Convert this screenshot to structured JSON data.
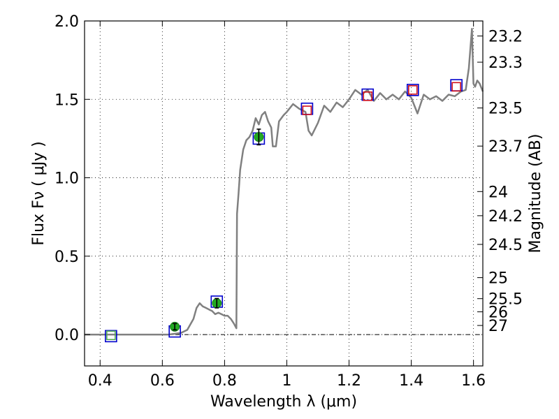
{
  "chart_data": {
    "type": "scatter",
    "xlabel": "Wavelength  λ (μm)",
    "ylabel": "Flux  Fν  ( μJy )",
    "ylabel_right": "Magnitude (AB)",
    "xlim": [
      0.35,
      1.63
    ],
    "ylim": [
      -0.2,
      2.0
    ],
    "grid": true,
    "zero_line": 0,
    "x_ticks": [
      {
        "value": 0.4,
        "label": "0.4"
      },
      {
        "value": 0.6,
        "label": "0.6"
      },
      {
        "value": 0.8,
        "label": "0.8"
      },
      {
        "value": 1.0,
        "label": "1"
      },
      {
        "value": 1.2,
        "label": "1.2"
      },
      {
        "value": 1.4,
        "label": "1.4"
      },
      {
        "value": 1.6,
        "label": "1.6"
      }
    ],
    "y_ticks": [
      {
        "value": 0.0,
        "label": "0.0"
      },
      {
        "value": 0.5,
        "label": "0.5"
      },
      {
        "value": 1.0,
        "label": "1.0"
      },
      {
        "value": 1.5,
        "label": "1.5"
      },
      {
        "value": 2.0,
        "label": "2.0"
      }
    ],
    "right_ticks": [
      {
        "label": "23.2",
        "flux": 1.904
      },
      {
        "label": "23.3",
        "flux": 1.737
      },
      {
        "label": "23.5",
        "flux": 1.445
      },
      {
        "label": "23.7",
        "flux": 1.202
      },
      {
        "label": "24",
        "flux": 0.912
      },
      {
        "label": "24.2",
        "flux": 0.758
      },
      {
        "label": "24.5",
        "flux": 0.575
      },
      {
        "label": "25",
        "flux": 0.363
      },
      {
        "label": "25.5",
        "flux": 0.229
      },
      {
        "label": "26",
        "flux": 0.145
      },
      {
        "label": "27",
        "flux": 0.058
      }
    ],
    "series": [
      {
        "kind": "line",
        "color": "#808080",
        "points": [
          [
            0.35,
            0.0
          ],
          [
            0.45,
            0.0
          ],
          [
            0.55,
            0.0
          ],
          [
            0.62,
            0.0
          ],
          [
            0.66,
            0.01
          ],
          [
            0.68,
            0.03
          ],
          [
            0.7,
            0.1
          ],
          [
            0.71,
            0.17
          ],
          [
            0.72,
            0.2
          ],
          [
            0.73,
            0.18
          ],
          [
            0.74,
            0.17
          ],
          [
            0.75,
            0.16
          ],
          [
            0.76,
            0.15
          ],
          [
            0.77,
            0.13
          ],
          [
            0.78,
            0.14
          ],
          [
            0.79,
            0.13
          ],
          [
            0.8,
            0.12
          ],
          [
            0.81,
            0.12
          ],
          [
            0.82,
            0.1
          ],
          [
            0.83,
            0.07
          ],
          [
            0.838,
            0.04
          ],
          [
            0.84,
            0.77
          ],
          [
            0.845,
            0.9
          ],
          [
            0.85,
            1.05
          ],
          [
            0.86,
            1.18
          ],
          [
            0.87,
            1.24
          ],
          [
            0.88,
            1.26
          ],
          [
            0.89,
            1.3
          ],
          [
            0.9,
            1.38
          ],
          [
            0.91,
            1.34
          ],
          [
            0.92,
            1.4
          ],
          [
            0.93,
            1.42
          ],
          [
            0.94,
            1.36
          ],
          [
            0.95,
            1.32
          ],
          [
            0.955,
            1.2
          ],
          [
            0.965,
            1.2
          ],
          [
            0.975,
            1.36
          ],
          [
            0.99,
            1.4
          ],
          [
            1.0,
            1.42
          ],
          [
            1.02,
            1.47
          ],
          [
            1.04,
            1.44
          ],
          [
            1.06,
            1.42
          ],
          [
            1.07,
            1.3
          ],
          [
            1.08,
            1.27
          ],
          [
            1.1,
            1.35
          ],
          [
            1.12,
            1.46
          ],
          [
            1.14,
            1.42
          ],
          [
            1.16,
            1.48
          ],
          [
            1.18,
            1.45
          ],
          [
            1.2,
            1.5
          ],
          [
            1.22,
            1.56
          ],
          [
            1.24,
            1.53
          ],
          [
            1.26,
            1.56
          ],
          [
            1.28,
            1.49
          ],
          [
            1.3,
            1.54
          ],
          [
            1.32,
            1.5
          ],
          [
            1.34,
            1.53
          ],
          [
            1.36,
            1.5
          ],
          [
            1.38,
            1.55
          ],
          [
            1.4,
            1.51
          ],
          [
            1.42,
            1.41
          ],
          [
            1.44,
            1.53
          ],
          [
            1.46,
            1.5
          ],
          [
            1.48,
            1.52
          ],
          [
            1.5,
            1.49
          ],
          [
            1.52,
            1.53
          ],
          [
            1.54,
            1.52
          ],
          [
            1.56,
            1.55
          ],
          [
            1.575,
            1.56
          ],
          [
            1.585,
            1.7
          ],
          [
            1.595,
            1.95
          ],
          [
            1.6,
            1.6
          ],
          [
            1.605,
            1.58
          ],
          [
            1.612,
            1.62
          ],
          [
            1.62,
            1.6
          ],
          [
            1.63,
            1.55
          ]
        ]
      },
      {
        "kind": "squares",
        "color": "#0000cc",
        "points": [
          [
            0.435,
            -0.01
          ],
          [
            0.64,
            0.02
          ],
          [
            0.775,
            0.21
          ],
          [
            0.91,
            1.25
          ],
          [
            1.065,
            1.44
          ],
          [
            1.26,
            1.53
          ],
          [
            1.405,
            1.56
          ],
          [
            1.545,
            1.59
          ]
        ]
      },
      {
        "kind": "squares",
        "color": "#d0101a",
        "points": [
          [
            1.065,
            1.43
          ],
          [
            1.26,
            1.52
          ],
          [
            1.405,
            1.56
          ],
          [
            1.545,
            1.58
          ]
        ]
      },
      {
        "kind": "squares",
        "color": "#55aa55",
        "points": [
          [
            0.435,
            -0.005
          ]
        ]
      },
      {
        "kind": "errorpoints",
        "color": "#22aa22",
        "points": [
          {
            "x": 0.64,
            "y": 0.05,
            "err": 0.02
          },
          {
            "x": 0.775,
            "y": 0.2,
            "err": 0.03
          },
          {
            "x": 0.91,
            "y": 1.26,
            "err": 0.05
          }
        ]
      }
    ]
  }
}
